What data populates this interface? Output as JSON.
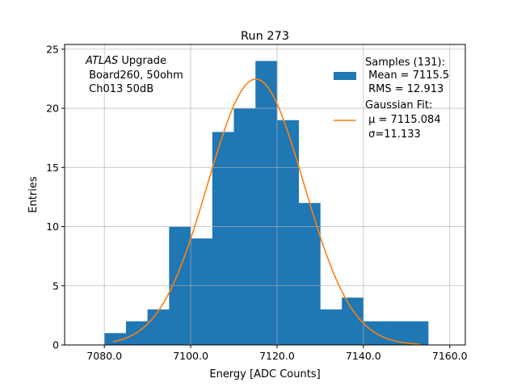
{
  "chart_data": {
    "type": "bar",
    "title": "Run 273",
    "xlabel": "Energy [ADC Counts]",
    "ylabel": "Entries",
    "xlim": [
      7070.8,
      7163.6
    ],
    "ylim": [
      0,
      25.4
    ],
    "grid": true,
    "xticks": [
      7080,
      7100,
      7120,
      7140,
      7160
    ],
    "xtick_labels": [
      "7080.0",
      "7100.0",
      "7120.0",
      "7140.0",
      "7160.0"
    ],
    "yticks": [
      0,
      5,
      10,
      15,
      20,
      25
    ],
    "ytick_labels": [
      "0",
      "5",
      "10",
      "15",
      "20",
      "25"
    ],
    "histogram": {
      "bin_edges": [
        7080,
        7085,
        7090,
        7095,
        7100,
        7105,
        7110,
        7115,
        7120,
        7125,
        7130,
        7135,
        7140,
        7145,
        7150,
        7155
      ],
      "counts": [
        1,
        2,
        3,
        10,
        9,
        18,
        20,
        24,
        19,
        12,
        3,
        4,
        2,
        2,
        2
      ],
      "color": "#1f77b4"
    },
    "fit": {
      "type": "gaussian",
      "mu": 7115.084,
      "sigma": 11.133,
      "amplitude": 22.47,
      "x_range": [
        7082,
        7153
      ],
      "color": "#ff7f0e"
    },
    "annotation": {
      "italic": "ATLAS",
      "line1_rest": " Upgrade",
      "line2": " Board260, 50ohm",
      "line3": " Ch013 50dB"
    },
    "legend": {
      "placement": "top-right",
      "samples": [
        "Samples (131):",
        " Mean = 7115.5",
        " RMS = 12.913"
      ],
      "fit": [
        "Gaussian Fit:",
        " μ = 7115.084",
        " σ=11.133"
      ]
    }
  }
}
